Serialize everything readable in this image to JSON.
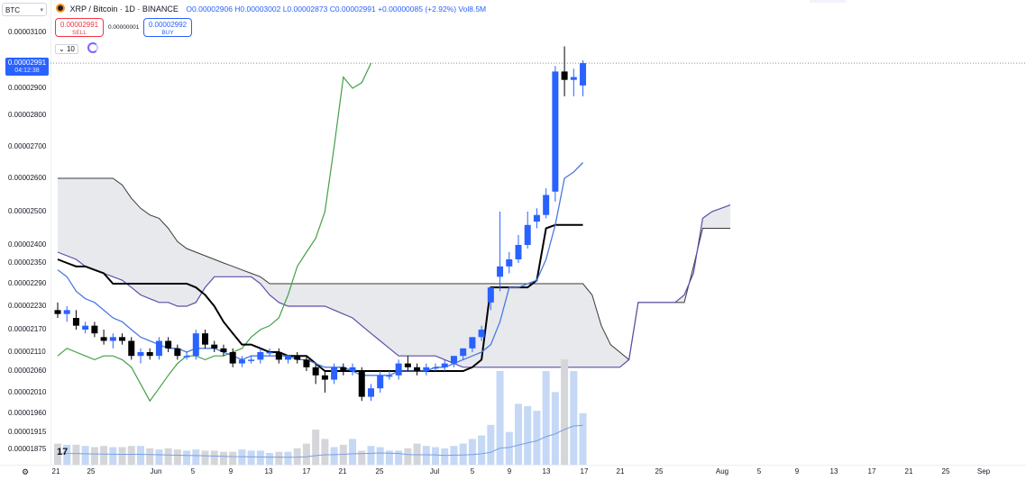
{
  "symbol_box": {
    "text": "BTC",
    "dropdown_icon": "chevron-down-icon"
  },
  "header": {
    "title": "XRP / Bitcoin · 1D · BINANCE",
    "ohlc": "O0.00002906 H0.00003002 L0.00002873 C0.00002991 +0.00000085 (+2.92%) Vol8.5M"
  },
  "trade": {
    "sell_price": "0.00002991",
    "sell_label": "SELL",
    "spread": "0.00000001",
    "buy_price": "0.00002992",
    "buy_label": "BUY"
  },
  "indicator": {
    "chevron": "⌄",
    "value": "10"
  },
  "price_tag": {
    "price": "0.00002991",
    "countdown": "04:12:38"
  },
  "price_axis": [
    "0.00003100",
    "0.00002900",
    "0.00002800",
    "0.00002700",
    "0.00002600",
    "0.00002500",
    "0.00002400",
    "0.00002350",
    "0.00002290",
    "0.00002230",
    "0.00002170",
    "0.00002110",
    "0.00002060",
    "0.00002010",
    "0.00001960",
    "0.00001915",
    "0.00001875"
  ],
  "time_axis": [
    "21",
    "25",
    "Jun",
    "5",
    "9",
    "13",
    "17",
    "21",
    "25",
    "Jul",
    "5",
    "9",
    "13",
    "17",
    "21",
    "25",
    "Aug",
    "5",
    "9",
    "13",
    "17",
    "21",
    "25",
    "Sep"
  ],
  "colors": {
    "up": "#2962ff",
    "down": "#000000",
    "tenkan": "#4a7ae0",
    "kijun": "#000000",
    "chikou": "#43a047",
    "cloud": "#e3e5ea",
    "volume": "#c5d8f5"
  },
  "chart_data": {
    "type": "candlestick",
    "title": "XRP / Bitcoin · 1D · BINANCE",
    "candles": [
      {
        "o": 2.22e-05,
        "h": 2.24e-05,
        "l": 2.2e-05,
        "c": 2.21e-05
      },
      {
        "o": 2.21e-05,
        "h": 2.23e-05,
        "l": 2.19e-05,
        "c": 2.22e-05
      },
      {
        "o": 2.2e-05,
        "h": 2.22e-05,
        "l": 2.17e-05,
        "c": 2.18e-05
      },
      {
        "o": 2.17e-05,
        "h": 2.19e-05,
        "l": 2.16e-05,
        "c": 2.18e-05
      },
      {
        "o": 2.18e-05,
        "h": 2.19e-05,
        "l": 2.15e-05,
        "c": 2.16e-05
      },
      {
        "o": 2.15e-05,
        "h": 2.17e-05,
        "l": 2.13e-05,
        "c": 2.14e-05
      },
      {
        "o": 2.14e-05,
        "h": 2.16e-05,
        "l": 2.12e-05,
        "c": 2.15e-05
      },
      {
        "o": 2.15e-05,
        "h": 2.16e-05,
        "l": 2.13e-05,
        "c": 2.14e-05
      },
      {
        "o": 2.14e-05,
        "h": 2.15e-05,
        "l": 2.09e-05,
        "c": 2.1e-05
      },
      {
        "o": 2.1e-05,
        "h": 2.12e-05,
        "l": 2.08e-05,
        "c": 2.11e-05
      },
      {
        "o": 2.11e-05,
        "h": 2.12e-05,
        "l": 2.09e-05,
        "c": 2.1e-05
      },
      {
        "o": 2.1e-05,
        "h": 2.15e-05,
        "l": 2.09e-05,
        "c": 2.14e-05
      },
      {
        "o": 2.14e-05,
        "h": 2.15e-05,
        "l": 2.11e-05,
        "c": 2.12e-05
      },
      {
        "o": 2.12e-05,
        "h": 2.13e-05,
        "l": 2.09e-05,
        "c": 2.1e-05
      },
      {
        "o": 2.1e-05,
        "h": 2.11e-05,
        "l": 2.09e-05,
        "c": 2.1e-05
      },
      {
        "o": 2.1e-05,
        "h": 2.17e-05,
        "l": 2.09e-05,
        "c": 2.16e-05
      },
      {
        "o": 2.16e-05,
        "h": 2.17e-05,
        "l": 2.12e-05,
        "c": 2.13e-05
      },
      {
        "o": 2.13e-05,
        "h": 2.14e-05,
        "l": 2.11e-05,
        "c": 2.12e-05
      },
      {
        "o": 2.12e-05,
        "h": 2.13e-05,
        "l": 2.1e-05,
        "c": 2.11e-05
      },
      {
        "o": 2.11e-05,
        "h": 2.12e-05,
        "l": 2.07e-05,
        "c": 2.08e-05
      },
      {
        "o": 2.08e-05,
        "h": 2.1e-05,
        "l": 2.07e-05,
        "c": 2.09e-05
      },
      {
        "o": 2.09e-05,
        "h": 2.1e-05,
        "l": 2.08e-05,
        "c": 2.09e-05
      },
      {
        "o": 2.09e-05,
        "h": 2.12e-05,
        "l": 2.08e-05,
        "c": 2.11e-05
      },
      {
        "o": 2.11e-05,
        "h": 2.12e-05,
        "l": 2.1e-05,
        "c": 2.11e-05
      },
      {
        "o": 2.11e-05,
        "h": 2.12e-05,
        "l": 2.08e-05,
        "c": 2.09e-05
      },
      {
        "o": 2.09e-05,
        "h": 2.1e-05,
        "l": 2.08e-05,
        "c": 2.1e-05
      },
      {
        "o": 2.1e-05,
        "h": 2.11e-05,
        "l": 2.08e-05,
        "c": 2.09e-05
      },
      {
        "o": 2.09e-05,
        "h": 2.1e-05,
        "l": 2.06e-05,
        "c": 2.07e-05
      },
      {
        "o": 2.07e-05,
        "h": 2.08e-05,
        "l": 2.03e-05,
        "c": 2.05e-05
      },
      {
        "o": 2.05e-05,
        "h": 2.06e-05,
        "l": 2.01e-05,
        "c": 2.04e-05
      },
      {
        "o": 2.04e-05,
        "h": 2.08e-05,
        "l": 2.03e-05,
        "c": 2.07e-05
      },
      {
        "o": 2.07e-05,
        "h": 2.08e-05,
        "l": 2.05e-05,
        "c": 2.06e-05
      },
      {
        "o": 2.06e-05,
        "h": 2.08e-05,
        "l": 2.05e-05,
        "c": 2.07e-05
      },
      {
        "o": 2.06e-05,
        "h": 2.07e-05,
        "l": 1.99e-05,
        "c": 2e-05
      },
      {
        "o": 2e-05,
        "h": 2.03e-05,
        "l": 1.99e-05,
        "c": 2.02e-05
      },
      {
        "o": 2.02e-05,
        "h": 2.06e-05,
        "l": 2.01e-05,
        "c": 2.05e-05
      },
      {
        "o": 2.05e-05,
        "h": 2.06e-05,
        "l": 2.04e-05,
        "c": 2.05e-05
      },
      {
        "o": 2.05e-05,
        "h": 2.09e-05,
        "l": 2.04e-05,
        "c": 2.08e-05
      },
      {
        "o": 2.08e-05,
        "h": 2.1e-05,
        "l": 2.06e-05,
        "c": 2.07e-05
      },
      {
        "o": 2.07e-05,
        "h": 2.08e-05,
        "l": 2.05e-05,
        "c": 2.06e-05
      },
      {
        "o": 2.06e-05,
        "h": 2.08e-05,
        "l": 2.05e-05,
        "c": 2.07e-05
      },
      {
        "o": 2.07e-05,
        "h": 2.08e-05,
        "l": 2.06e-05,
        "c": 2.07e-05
      },
      {
        "o": 2.07e-05,
        "h": 2.09e-05,
        "l": 2.06e-05,
        "c": 2.08e-05
      },
      {
        "o": 2.08e-05,
        "h": 2.1e-05,
        "l": 2.07e-05,
        "c": 2.1e-05
      },
      {
        "o": 2.1e-05,
        "h": 2.12e-05,
        "l": 2.09e-05,
        "c": 2.12e-05
      },
      {
        "o": 2.12e-05,
        "h": 2.15e-05,
        "l": 2.11e-05,
        "c": 2.15e-05
      },
      {
        "o": 2.15e-05,
        "h": 2.18e-05,
        "l": 2.14e-05,
        "c": 2.17e-05
      },
      {
        "o": 2.24e-05,
        "h": 2.28e-05,
        "l": 2.22e-05,
        "c": 2.28e-05
      },
      {
        "o": 2.31e-05,
        "h": 2.5e-05,
        "l": 2.27e-05,
        "c": 2.34e-05
      },
      {
        "o": 2.34e-05,
        "h": 2.38e-05,
        "l": 2.32e-05,
        "c": 2.36e-05
      },
      {
        "o": 2.36e-05,
        "h": 2.43e-05,
        "l": 2.35e-05,
        "c": 2.4e-05
      },
      {
        "o": 2.4e-05,
        "h": 2.5e-05,
        "l": 2.39e-05,
        "c": 2.46e-05
      },
      {
        "o": 2.47e-05,
        "h": 2.51e-05,
        "l": 2.45e-05,
        "c": 2.49e-05
      },
      {
        "o": 2.49e-05,
        "h": 2.57e-05,
        "l": 2.48e-05,
        "c": 2.55e-05
      },
      {
        "o": 2.56e-05,
        "h": 2.98e-05,
        "l": 2.53e-05,
        "c": 2.96e-05
      },
      {
        "o": 2.96e-05,
        "h": 3.05e-05,
        "l": 2.87e-05,
        "c": 2.93e-05
      },
      {
        "o": 2.93e-05,
        "h": 2.97e-05,
        "l": 2.87e-05,
        "c": 2.94e-05
      },
      {
        "o": 2.91e-05,
        "h": 3e-05,
        "l": 2.87e-05,
        "c": 2.99e-05
      }
    ],
    "volume": [
      0.18,
      0.17,
      0.17,
      0.16,
      0.15,
      0.16,
      0.15,
      0.15,
      0.16,
      0.16,
      0.14,
      0.13,
      0.14,
      0.13,
      0.12,
      0.13,
      0.12,
      0.12,
      0.11,
      0.11,
      0.13,
      0.12,
      0.12,
      0.1,
      0.11,
      0.11,
      0.14,
      0.18,
      0.3,
      0.22,
      0.15,
      0.17,
      0.22,
      0.12,
      0.16,
      0.15,
      0.12,
      0.12,
      0.14,
      0.18,
      0.16,
      0.15,
      0.14,
      0.16,
      0.18,
      0.22,
      0.25,
      0.34,
      0.8,
      0.28,
      0.52,
      0.5,
      0.46,
      0.8,
      0.62,
      0.9,
      0.8,
      0.44
    ],
    "tenkan_sen": [
      2.33e-05,
      2.31e-05,
      2.27e-05,
      2.25e-05,
      2.24e-05,
      2.22e-05,
      2.2e-05,
      2.19e-05,
      2.17e-05,
      2.15e-05,
      2.14e-05,
      2.13e-05,
      2.12e-05,
      2.12e-05,
      2.11e-05,
      2.12e-05,
      2.12e-05,
      2.12e-05,
      2.11e-05,
      2.1e-05,
      2.09e-05,
      2.1e-05,
      2.1e-05,
      2.1e-05,
      2.1e-05,
      2.1e-05,
      2.09e-05,
      2.09e-05,
      2.08e-05,
      2.07e-05,
      2.07e-05,
      2.07e-05,
      2.06e-05,
      2.05e-05,
      2.05e-05,
      2.05e-05,
      2.05e-05,
      2.06e-05,
      2.06e-05,
      2.06e-05,
      2.06e-05,
      2.07e-05,
      2.07e-05,
      2.08e-05,
      2.09e-05,
      2.1e-05,
      2.11e-05,
      2.13e-05,
      2.19e-05,
      2.28e-05,
      2.28e-05,
      2.29e-05,
      2.3e-05,
      2.36e-05,
      2.46e-05,
      2.6e-05,
      2.62e-05,
      2.65e-05
    ],
    "kijun_sen": [
      2.36e-05,
      2.35e-05,
      2.34e-05,
      2.34e-05,
      2.33e-05,
      2.32e-05,
      2.29e-05,
      2.29e-05,
      2.29e-05,
      2.29e-05,
      2.29e-05,
      2.29e-05,
      2.29e-05,
      2.29e-05,
      2.29e-05,
      2.28e-05,
      2.26e-05,
      2.23e-05,
      2.19e-05,
      2.16e-05,
      2.13e-05,
      2.13e-05,
      2.12e-05,
      2.11e-05,
      2.11e-05,
      2.1e-05,
      2.1e-05,
      2.1e-05,
      2.08e-05,
      2.06e-05,
      2.06e-05,
      2.06e-05,
      2.06e-05,
      2.06e-05,
      2.06e-05,
      2.06e-05,
      2.06e-05,
      2.06e-05,
      2.06e-05,
      2.06e-05,
      2.06e-05,
      2.06e-05,
      2.06e-05,
      2.06e-05,
      2.06e-05,
      2.07e-05,
      2.09e-05,
      2.28e-05,
      2.28e-05,
      2.28e-05,
      2.28e-05,
      2.28e-05,
      2.3e-05,
      2.45e-05,
      2.46e-05,
      2.46e-05,
      2.46e-05,
      2.46e-05
    ],
    "chikou_span": [
      2.1e-05,
      2.12e-05,
      2.11e-05,
      2.1e-05,
      2.09e-05,
      2.1e-05,
      2.1e-05,
      2.09e-05,
      2.07e-05,
      2.03e-05,
      1.99e-05,
      2.02e-05,
      2.05e-05,
      2.08e-05,
      2.1e-05,
      2.1e-05,
      2.09e-05,
      2.1e-05,
      2.1e-05,
      2.11e-05,
      2.12e-05,
      2.15e-05,
      2.17e-05,
      2.18e-05,
      2.2e-05,
      2.26e-05,
      2.34e-05,
      2.38e-05,
      2.42e-05,
      2.5e-05,
      2.7e-05,
      2.94e-05,
      2.9e-05,
      2.92e-05,
      2.99e-05
    ],
    "cloud_a": [
      2.6e-05,
      2.6e-05,
      2.6e-05,
      2.6e-05,
      2.6e-05,
      2.6e-05,
      2.6e-05,
      2.58e-05,
      2.54e-05,
      2.51e-05,
      2.49e-05,
      2.48e-05,
      2.45e-05,
      2.41e-05,
      2.39e-05,
      2.38e-05,
      2.37e-05,
      2.36e-05,
      2.35e-05,
      2.34e-05,
      2.33e-05,
      2.32e-05,
      2.31e-05,
      2.29e-05,
      2.29e-05,
      2.29e-05,
      2.29e-05,
      2.29e-05,
      2.29e-05,
      2.29e-05,
      2.29e-05,
      2.29e-05,
      2.29e-05,
      2.29e-05,
      2.29e-05,
      2.29e-05,
      2.29e-05,
      2.29e-05,
      2.29e-05,
      2.29e-05,
      2.29e-05,
      2.29e-05,
      2.29e-05,
      2.29e-05,
      2.29e-05,
      2.29e-05,
      2.29e-05,
      2.29e-05,
      2.29e-05,
      2.29e-05,
      2.29e-05,
      2.29e-05,
      2.29e-05,
      2.29e-05,
      2.29e-05,
      2.29e-05,
      2.29e-05,
      2.29e-05,
      2.26e-05,
      2.18e-05,
      2.13e-05,
      2.11e-05,
      2.09e-05,
      2.24e-05,
      2.24e-05,
      2.24e-05,
      2.24e-05,
      2.24e-05,
      2.24e-05,
      2.34e-05,
      2.45e-05,
      2.45e-05,
      2.45e-05,
      2.45e-05
    ],
    "cloud_b": [
      2.38e-05,
      2.37e-05,
      2.36e-05,
      2.34e-05,
      2.33e-05,
      2.32e-05,
      2.31e-05,
      2.3e-05,
      2.28e-05,
      2.26e-05,
      2.25e-05,
      2.24e-05,
      2.24e-05,
      2.23e-05,
      2.23e-05,
      2.24e-05,
      2.28e-05,
      2.31e-05,
      2.31e-05,
      2.31e-05,
      2.31e-05,
      2.31e-05,
      2.29e-05,
      2.26e-05,
      2.24e-05,
      2.23e-05,
      2.23e-05,
      2.23e-05,
      2.23e-05,
      2.23e-05,
      2.22e-05,
      2.21e-05,
      2.2e-05,
      2.18e-05,
      2.16e-05,
      2.14e-05,
      2.12e-05,
      2.1e-05,
      2.1e-05,
      2.1e-05,
      2.1e-05,
      2.1e-05,
      2.09e-05,
      2.08e-05,
      2.07e-05,
      2.07e-05,
      2.07e-05,
      2.07e-05,
      2.07e-05,
      2.07e-05,
      2.07e-05,
      2.07e-05,
      2.07e-05,
      2.07e-05,
      2.07e-05,
      2.07e-05,
      2.07e-05,
      2.07e-05,
      2.07e-05,
      2.07e-05,
      2.07e-05,
      2.07e-05,
      2.09e-05,
      2.24e-05,
      2.24e-05,
      2.24e-05,
      2.24e-05,
      2.24e-05,
      2.26e-05,
      2.32e-05,
      2.48e-05,
      2.5e-05,
      2.51e-05,
      2.52e-05
    ]
  }
}
